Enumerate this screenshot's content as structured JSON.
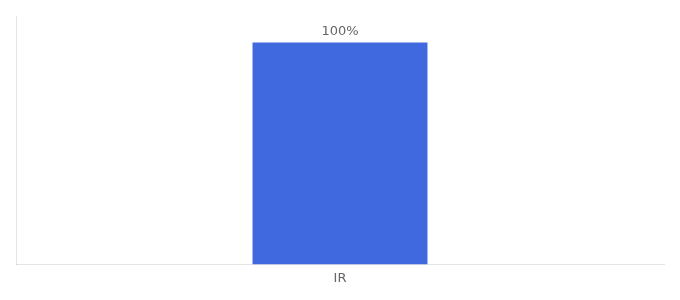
{
  "chart_data": {
    "type": "bar",
    "categories": [
      "IR"
    ],
    "values": [
      100
    ],
    "value_labels": [
      "100%"
    ],
    "data_labels": true,
    "color": "#4169df",
    "ylim": [
      0,
      112
    ],
    "grid": false,
    "tick_labels": "x"
  }
}
